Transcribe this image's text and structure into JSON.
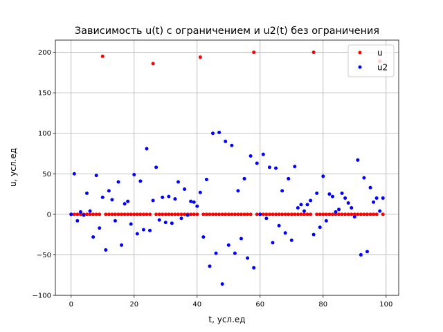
{
  "chart_data": {
    "type": "scatter",
    "title": "Зависимость u(t) с ограничением и u2(t) без ограничения",
    "xlabel": "t, усл.ед",
    "ylabel": "u, усл.ед",
    "xlim": [
      -5,
      104
    ],
    "ylim": [
      -100,
      215
    ],
    "xticks": [
      0,
      20,
      40,
      60,
      80,
      100
    ],
    "yticks": [
      -100,
      -50,
      0,
      50,
      100,
      150,
      200
    ],
    "grid": true,
    "legend_position": "top-right",
    "series": [
      {
        "name": "u",
        "color": "#ff0000",
        "x": [
          0,
          1,
          2,
          3,
          4,
          5,
          6,
          7,
          8,
          9,
          10,
          11,
          12,
          13,
          14,
          15,
          16,
          17,
          18,
          19,
          20,
          21,
          22,
          23,
          24,
          25,
          26,
          27,
          28,
          29,
          30,
          31,
          32,
          33,
          34,
          35,
          36,
          37,
          38,
          39,
          40,
          41,
          42,
          43,
          44,
          45,
          46,
          47,
          48,
          49,
          50,
          51,
          52,
          53,
          54,
          55,
          56,
          57,
          58,
          59,
          60,
          61,
          62,
          63,
          64,
          65,
          66,
          67,
          68,
          69,
          70,
          71,
          72,
          73,
          74,
          75,
          76,
          77,
          78,
          79,
          80,
          81,
          82,
          83,
          84,
          85,
          86,
          87,
          88,
          89,
          90,
          91,
          92,
          93,
          94,
          95,
          96,
          97,
          98,
          99
        ],
        "y": [
          0,
          0,
          0,
          0,
          0,
          0,
          0,
          0,
          0,
          0,
          195,
          0,
          0,
          0,
          0,
          0,
          0,
          0,
          0,
          0,
          0,
          0,
          0,
          0,
          0,
          0,
          186,
          0,
          0,
          0,
          0,
          0,
          0,
          0,
          0,
          0,
          0,
          0,
          0,
          0,
          0,
          194,
          0,
          0,
          0,
          0,
          0,
          0,
          0,
          0,
          0,
          0,
          0,
          0,
          0,
          0,
          0,
          0,
          200,
          0,
          0,
          0,
          0,
          0,
          0,
          0,
          0,
          0,
          0,
          0,
          0,
          0,
          0,
          0,
          0,
          0,
          0,
          200,
          0,
          0,
          0,
          0,
          0,
          0,
          0,
          0,
          0,
          0,
          0,
          0,
          0,
          0,
          0,
          0,
          0,
          0,
          0,
          0,
          189,
          0
        ]
      },
      {
        "name": "u2",
        "color": "#0000ff",
        "x": [
          0,
          1,
          2,
          3,
          4,
          5,
          6,
          7,
          8,
          9,
          10,
          11,
          12,
          13,
          14,
          15,
          16,
          17,
          18,
          19,
          20,
          21,
          22,
          23,
          24,
          25,
          26,
          27,
          28,
          29,
          30,
          31,
          32,
          33,
          34,
          35,
          36,
          37,
          38,
          39,
          40,
          41,
          42,
          43,
          44,
          45,
          46,
          47,
          48,
          49,
          50,
          51,
          52,
          53,
          54,
          55,
          56,
          57,
          58,
          59,
          60,
          61,
          62,
          63,
          64,
          65,
          66,
          67,
          68,
          69,
          70,
          71,
          72,
          73,
          74,
          75,
          76,
          77,
          78,
          79,
          80,
          81,
          82,
          83,
          84,
          85,
          86,
          87,
          88,
          89,
          90,
          91,
          92,
          93,
          94,
          95,
          96,
          97,
          98,
          99
        ],
        "y": [
          0,
          50,
          -8,
          3,
          -1,
          26,
          4,
          -28,
          48,
          -17,
          21,
          -44,
          29,
          18,
          -8,
          40,
          -38,
          13,
          16,
          -12,
          49,
          -24,
          41,
          -19,
          81,
          -20,
          17,
          58,
          -7,
          21,
          -10,
          22,
          -11,
          19,
          40,
          -5,
          31,
          -1,
          16,
          15,
          10,
          27,
          -28,
          43,
          -64,
          100,
          -48,
          101,
          -86,
          90,
          -38,
          85,
          -48,
          29,
          -30,
          44,
          -54,
          72,
          -66,
          63,
          0,
          74,
          -5,
          58,
          -35,
          57,
          -14,
          29,
          -23,
          44,
          -32,
          59,
          8,
          12,
          4,
          12,
          17,
          -25,
          26,
          -16,
          47,
          -8,
          25,
          22,
          3,
          6,
          26,
          20,
          14,
          8,
          -3,
          67,
          -50,
          45,
          -46,
          33,
          15,
          20,
          4,
          20
        ]
      }
    ]
  }
}
